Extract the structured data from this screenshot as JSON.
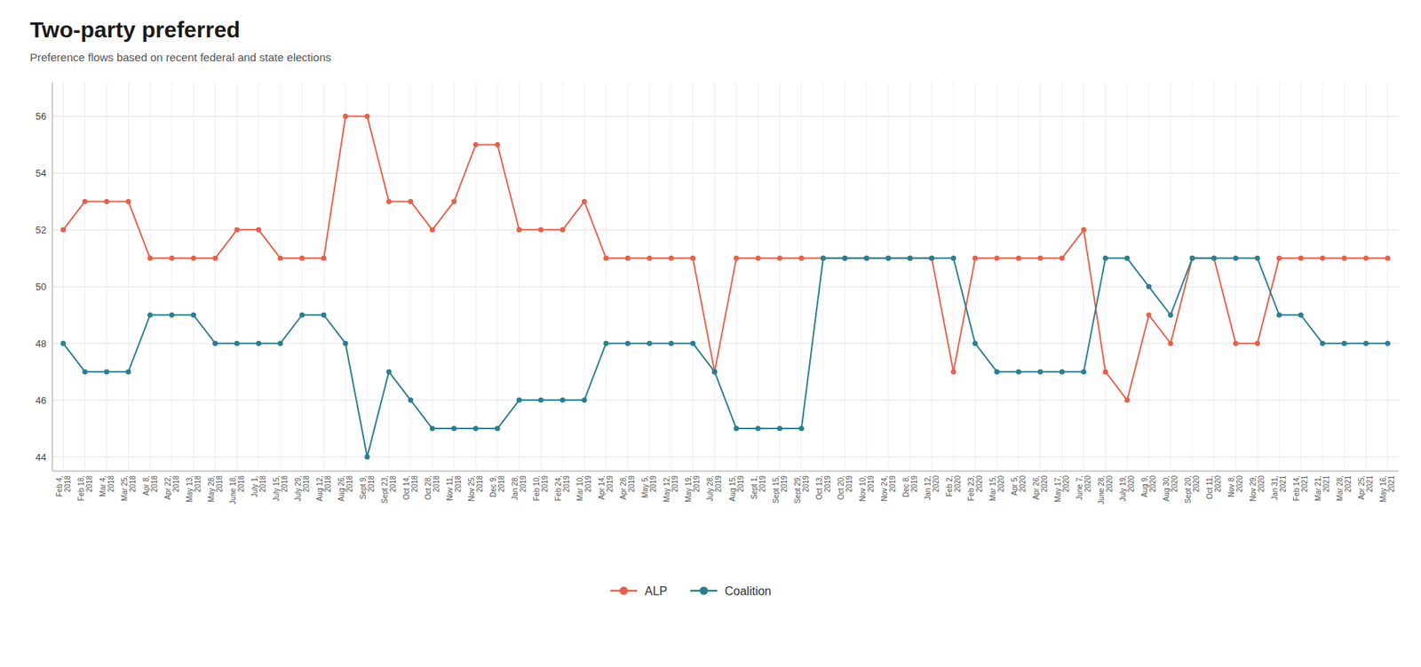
{
  "chart_data": {
    "type": "line",
    "title": "Two-party preferred",
    "subtitle": "Preference flows based on recent federal and state elections",
    "categories": [
      "Feb 4,\n2018",
      "Feb 18,\n2018",
      "Mar 4,\n2018",
      "Mar 25,\n2018",
      "Apr 8,\n2018",
      "Apr 22,\n2018",
      "May 13,\n2018",
      "May 28,\n2018",
      "June 18,\n2018",
      "July 1,\n2018",
      "July 15,\n2018",
      "July 29,\n2018",
      "Aug 12,\n2018",
      "Aug 26,\n2018",
      "Sept 9,\n2018",
      "Sept 23,\n2018",
      "Oct 14,\n2018",
      "Oct 28,\n2018",
      "Nov 11,\n2018",
      "Nov 25,\n2018",
      "Dec 9,\n2018",
      "Jan 28,\n2019",
      "Feb 10,\n2019",
      "Feb 24,\n2019",
      "Mar 10,\n2019",
      "Apr 14,\n2019",
      "Apr 28,\n2019",
      "May 5,\n2019",
      "May 12,\n2019",
      "May 19,\n2019",
      "July 28,\n2019",
      "Aug 15,\n2019",
      "Sept 1,\n2019",
      "Sept 15,\n2019",
      "Sept 29,\n2019",
      "Oct 13,\n2019",
      "Oct 20,\n2019",
      "Nov 10,\n2019",
      "Nov 24,\n2019",
      "Dec 8,\n2019",
      "Jan 12,\n2020",
      "Feb 2,\n2020",
      "Feb 23,\n2020",
      "Mar 15,\n2020",
      "Apr 5,\n2020",
      "Apr 26,\n2020",
      "May 17,\n2020",
      "June 7,\n2020",
      "June 28,\n2020",
      "July 19,\n2020",
      "Aug 9,\n2020",
      "Aug 30,\n2020",
      "Sept 20,\n2020",
      "Oct 11,\n2020",
      "Nov 8,\n2020",
      "Nov 29,\n2020",
      "Jan 31,\n2021",
      "Feb 14,\n2021",
      "Mar 21,\n2021",
      "Mar 28,\n2021",
      "Apr 25,\n2021",
      "May 16,\n2021"
    ],
    "series": [
      {
        "name": "ALP",
        "color": "#e8604b",
        "marker": "circle",
        "values": [
          52,
          53,
          53,
          53,
          51,
          51,
          51,
          51,
          52,
          52,
          51,
          51,
          51,
          56,
          56,
          53,
          53,
          52,
          53,
          55,
          55,
          52,
          52,
          52,
          53,
          51,
          51,
          51,
          51,
          51,
          47,
          51,
          51,
          51,
          51,
          51,
          51,
          51,
          51,
          51,
          51,
          47,
          51,
          51,
          51,
          51,
          51,
          52,
          47,
          46,
          49,
          48,
          51,
          51,
          48,
          48,
          51,
          51,
          51,
          51,
          51,
          51
        ]
      },
      {
        "name": "Coalition",
        "color": "#2a7f8c",
        "marker": "circle",
        "values": [
          48,
          47,
          47,
          47,
          49,
          49,
          49,
          48,
          48,
          48,
          48,
          49,
          49,
          48,
          44,
          47,
          46,
          45,
          45,
          45,
          45,
          46,
          46,
          46,
          46,
          48,
          48,
          48,
          48,
          48,
          47,
          45,
          45,
          45,
          45,
          51,
          51,
          51,
          51,
          51,
          51,
          51,
          48,
          47,
          47,
          47,
          47,
          47,
          51,
          51,
          50,
          49,
          51,
          51,
          51,
          51,
          49,
          49,
          48,
          48,
          48,
          48
        ]
      }
    ],
    "ylim": [
      43.5,
      57.2
    ],
    "yticks": [
      44,
      46,
      48,
      50,
      52,
      54,
      56
    ],
    "grid": true,
    "legend": "bottom"
  }
}
